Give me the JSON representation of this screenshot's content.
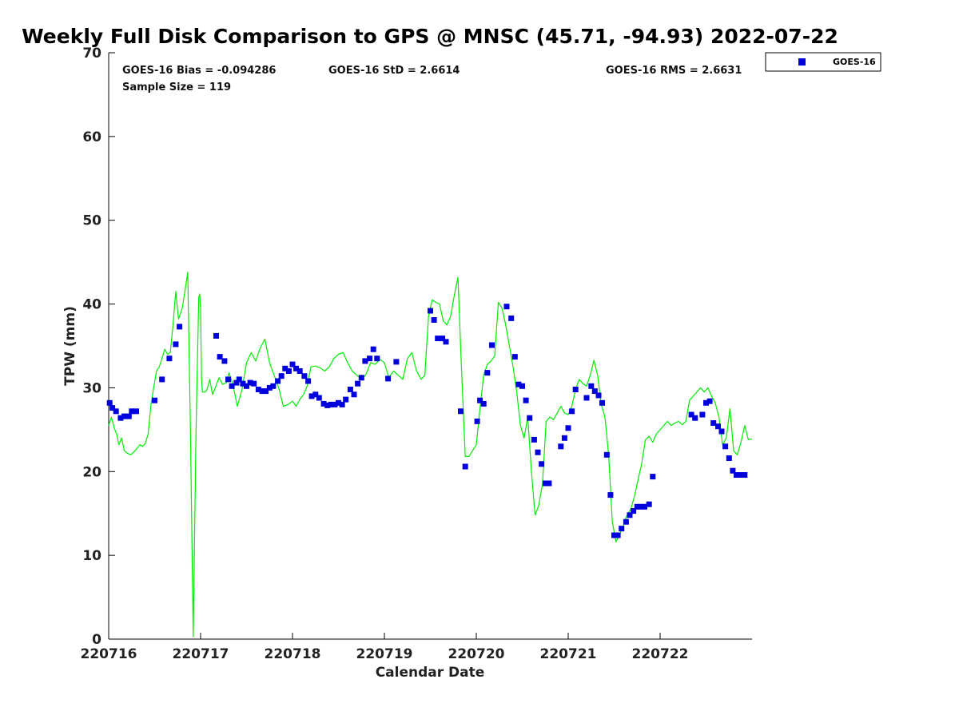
{
  "colors": {
    "gps_line": "#00ee00",
    "goes_marker": "#0000dd",
    "axis": "#000000"
  },
  "chart_data": {
    "type": "scatter",
    "title": "Weekly Full Disk Comparison to GPS @ MNSC (45.71, -94.93) 2022-07-22",
    "xlabel": "Calendar Date",
    "ylabel": "TPW (mm)",
    "xlim": [
      0,
      7
    ],
    "ylim": [
      0,
      70
    ],
    "x_ticks": [
      0,
      1,
      2,
      3,
      4,
      5,
      6
    ],
    "x_tick_labels": [
      "220716",
      "220717",
      "220718",
      "220719",
      "220720",
      "220721",
      "220722"
    ],
    "y_ticks": [
      0,
      10,
      20,
      30,
      40,
      50,
      60,
      70
    ],
    "y_tick_labels": [
      "0",
      "10",
      "20",
      "30",
      "40",
      "50",
      "60",
      "70"
    ],
    "stats": {
      "bias": "GOES-16 Bias = -0.094286",
      "std": "GOES-16 StD = 2.6614",
      "rms": "GOES-16 RMS = 2.6631",
      "sample": "Sample Size = 119"
    },
    "legend": {
      "position": "top-right, outside plot",
      "entries": [
        "GOES-16"
      ]
    },
    "series": [
      {
        "name": "GOES-16",
        "style": "square-marker",
        "x": [
          0.01,
          0.04,
          0.08,
          0.13,
          0.17,
          0.22,
          0.25,
          0.3,
          0.5,
          0.58,
          0.66,
          0.73,
          0.77,
          1.17,
          1.21,
          1.26,
          1.3,
          1.34,
          1.39,
          1.42,
          1.46,
          1.5,
          1.54,
          1.58,
          1.63,
          1.67,
          1.71,
          1.75,
          1.79,
          1.84,
          1.88,
          1.92,
          1.96,
          2.0,
          2.04,
          2.08,
          2.13,
          2.17,
          2.21,
          2.25,
          2.29,
          2.34,
          2.38,
          2.42,
          2.46,
          2.5,
          2.54,
          2.58,
          2.63,
          2.67,
          2.71,
          2.75,
          2.79,
          2.84,
          2.88,
          2.92,
          3.04,
          3.13,
          3.5,
          3.54,
          3.58,
          3.63,
          3.67,
          3.83,
          3.88,
          4.01,
          4.04,
          4.08,
          4.12,
          4.17,
          4.33,
          4.38,
          4.42,
          4.46,
          4.5,
          4.54,
          4.58,
          4.63,
          4.67,
          4.71,
          4.75,
          4.79,
          4.92,
          4.96,
          5.0,
          5.04,
          5.08,
          5.2,
          5.25,
          5.29,
          5.33,
          5.37,
          5.42,
          5.46,
          5.5,
          5.54,
          5.58,
          5.63,
          5.67,
          5.71,
          5.75,
          5.79,
          5.83,
          5.88,
          5.92,
          6.34,
          6.38,
          6.46,
          6.5,
          6.54,
          6.58,
          6.63,
          6.67,
          6.71,
          6.75,
          6.79,
          6.83,
          6.88,
          6.92
        ],
        "y": [
          28.2,
          27.6,
          27.2,
          26.4,
          26.6,
          26.6,
          27.2,
          27.2,
          28.5,
          31.0,
          33.5,
          35.2,
          37.3,
          36.2,
          33.7,
          33.2,
          31.0,
          30.2,
          30.6,
          31.0,
          30.5,
          30.2,
          30.6,
          30.5,
          29.8,
          29.6,
          29.6,
          30.0,
          30.2,
          30.8,
          31.4,
          32.3,
          32.0,
          32.8,
          32.3,
          32.0,
          31.4,
          30.8,
          29.0,
          29.2,
          28.8,
          28.1,
          27.9,
          28.0,
          28.0,
          28.2,
          28.0,
          28.6,
          29.8,
          29.2,
          30.5,
          31.2,
          33.2,
          33.5,
          34.6,
          33.5,
          31.1,
          33.1,
          39.2,
          38.1,
          35.9,
          35.9,
          35.5,
          27.2,
          20.6,
          26.0,
          28.5,
          28.1,
          31.8,
          35.1,
          39.7,
          38.3,
          33.7,
          30.4,
          30.2,
          28.5,
          26.4,
          23.8,
          22.3,
          20.9,
          18.6,
          18.6,
          23.0,
          24.0,
          25.2,
          27.2,
          29.8,
          28.8,
          30.2,
          29.6,
          29.1,
          28.2,
          22.0,
          17.2,
          12.4,
          12.4,
          13.2,
          14.0,
          14.8,
          15.3,
          15.8,
          15.8,
          15.8,
          16.1,
          19.4,
          26.8,
          26.4,
          26.8,
          28.2,
          28.4,
          25.8,
          25.4,
          24.8,
          23.0,
          21.6,
          20.1,
          19.6,
          19.6,
          19.6
        ]
      },
      {
        "name": "GPS",
        "style": "line",
        "x": [
          0.0,
          0.03,
          0.06,
          0.09,
          0.11,
          0.14,
          0.17,
          0.2,
          0.24,
          0.28,
          0.31,
          0.34,
          0.37,
          0.4,
          0.43,
          0.46,
          0.49,
          0.52,
          0.55,
          0.58,
          0.61,
          0.64,
          0.67,
          0.7,
          0.73,
          0.76,
          0.8,
          0.83,
          0.86,
          0.89,
          0.92,
          0.95,
          0.98,
          0.99,
          1.0,
          1.01,
          1.02,
          1.05,
          1.07,
          1.1,
          1.13,
          1.16,
          1.2,
          1.24,
          1.28,
          1.31,
          1.35,
          1.4,
          1.45,
          1.5,
          1.55,
          1.6,
          1.65,
          1.7,
          1.75,
          1.8,
          1.85,
          1.9,
          1.95,
          2.0,
          2.04,
          2.08,
          2.12,
          2.16,
          2.2,
          2.25,
          2.3,
          2.35,
          2.4,
          2.45,
          2.5,
          2.55,
          2.6,
          2.65,
          2.7,
          2.75,
          2.8,
          2.85,
          2.9,
          2.95,
          3.0,
          3.05,
          3.1,
          3.15,
          3.2,
          3.25,
          3.3,
          3.35,
          3.4,
          3.44,
          3.48,
          3.52,
          3.56,
          3.6,
          3.64,
          3.68,
          3.72,
          3.76,
          3.8,
          3.84,
          3.88,
          3.92,
          3.96,
          4.0,
          4.04,
          4.08,
          4.12,
          4.16,
          4.2,
          4.24,
          4.28,
          4.32,
          4.36,
          4.4,
          4.44,
          4.48,
          4.52,
          4.56,
          4.6,
          4.64,
          4.68,
          4.72,
          4.76,
          4.8,
          4.84,
          4.88,
          4.92,
          4.96,
          5.0,
          5.04,
          5.08,
          5.12,
          5.16,
          5.2,
          5.24,
          5.28,
          5.32,
          5.36,
          5.4,
          5.44,
          5.48,
          5.52,
          5.56,
          5.6,
          5.64,
          5.68,
          5.72,
          5.76,
          5.8,
          5.84,
          5.88,
          5.92,
          5.96,
          6.0,
          6.04,
          6.08,
          6.12,
          6.16,
          6.2,
          6.24,
          6.28,
          6.32,
          6.36,
          6.4,
          6.44,
          6.48,
          6.52,
          6.56,
          6.6,
          6.64,
          6.68,
          6.72,
          6.76,
          6.8,
          6.84,
          6.88,
          6.92,
          6.96,
          7.0
        ],
        "y": [
          25.5,
          26.5,
          25.2,
          24.4,
          23.2,
          24.0,
          22.5,
          22.2,
          22.0,
          22.4,
          22.8,
          23.2,
          23.0,
          23.4,
          24.5,
          28.0,
          30.0,
          32.0,
          32.5,
          33.5,
          34.6,
          34.0,
          34.2,
          37.5,
          41.5,
          38.2,
          39.5,
          41.5,
          43.8,
          25.0,
          0.3,
          25.0,
          40.8,
          41.2,
          39.5,
          31.0,
          29.5,
          29.5,
          29.8,
          31.0,
          29.2,
          30.0,
          31.2,
          30.4,
          30.6,
          31.8,
          30.4,
          27.8,
          29.8,
          33.0,
          34.2,
          33.2,
          34.8,
          35.8,
          33.0,
          31.5,
          30.0,
          27.8,
          28.0,
          28.4,
          27.8,
          28.6,
          29.2,
          30.2,
          32.5,
          32.6,
          32.4,
          32.0,
          32.5,
          33.5,
          34.0,
          34.2,
          33.0,
          32.0,
          31.5,
          31.0,
          31.6,
          33.0,
          32.8,
          33.4,
          33.0,
          31.2,
          32.0,
          31.5,
          31.0,
          33.5,
          34.2,
          32.0,
          31.0,
          31.5,
          38.5,
          40.5,
          40.2,
          40.0,
          38.0,
          37.5,
          38.5,
          41.0,
          43.2,
          32.0,
          21.8,
          21.8,
          22.5,
          23.2,
          27.5,
          31.5,
          32.8,
          33.2,
          33.8,
          40.2,
          39.5,
          37.5,
          35.0,
          32.5,
          29.5,
          25.5,
          24.0,
          26.5,
          20.0,
          14.8,
          16.0,
          18.5,
          26.0,
          26.5,
          26.2,
          27.0,
          27.8,
          27.0,
          26.8,
          27.8,
          29.8,
          31.0,
          30.5,
          30.2,
          31.5,
          33.3,
          31.5,
          28.0,
          26.5,
          22.0,
          14.0,
          11.6,
          12.5,
          13.5,
          14.8,
          15.5,
          17.0,
          19.0,
          21.0,
          23.8,
          24.2,
          23.5,
          24.5,
          25.0,
          25.5,
          26.0,
          25.5,
          25.8,
          26.0,
          25.6,
          26.0,
          28.5,
          29.0,
          29.5,
          30.0,
          29.5,
          30.0,
          29.0,
          28.2,
          26.5,
          23.2,
          24.0,
          27.5,
          22.5,
          22.0,
          23.5,
          25.5,
          23.8,
          23.9
        ]
      }
    ]
  }
}
